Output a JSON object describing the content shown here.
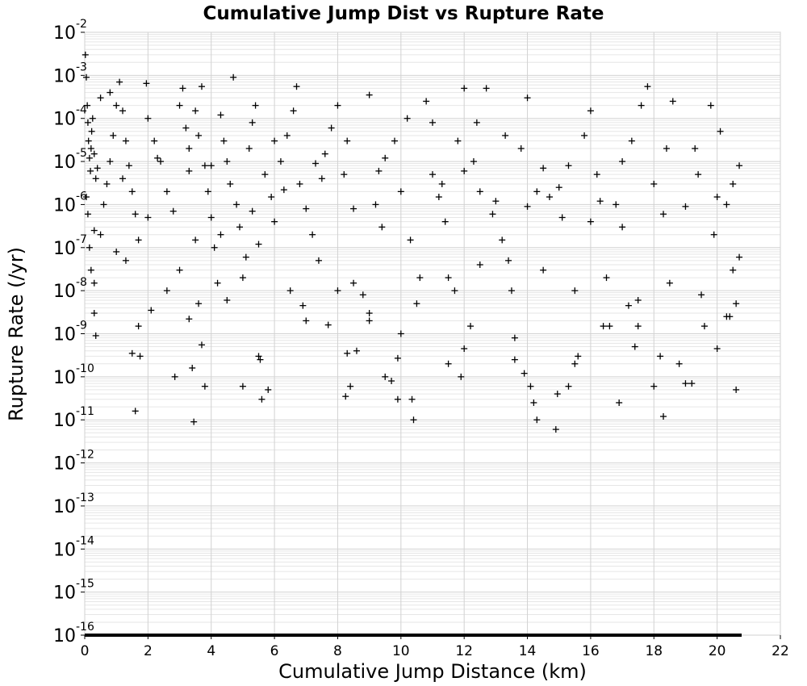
{
  "chart_data": {
    "type": "scatter",
    "title": "Cumulative Jump Dist vs Rupture Rate",
    "xlabel": "Cumulative Jump Distance (km)",
    "ylabel": "Rupture Rate (/yr)",
    "xlim": [
      0,
      22
    ],
    "ylim": [
      1e-16,
      0.01
    ],
    "y_scale": "log",
    "grid": true,
    "legend": "none",
    "marker": "plus",
    "marker_color": "#000000",
    "x_ticks": [
      0,
      2,
      4,
      6,
      8,
      10,
      12,
      14,
      16,
      18,
      20,
      22
    ],
    "y_tick_exponents": [
      -16,
      -15,
      -14,
      -13,
      -12,
      -11,
      -10,
      -9,
      -8,
      -7,
      -6,
      -5,
      -4,
      -3,
      -2
    ],
    "y_tick_base": "10",
    "points": [
      [
        0.02,
        0.003
      ],
      [
        0.05,
        0.0009
      ],
      [
        0.08,
        0.0002
      ],
      [
        0.1,
        8e-05
      ],
      [
        0.12,
        3e-05
      ],
      [
        0.15,
        1.2e-05
      ],
      [
        0.18,
        6e-06
      ],
      [
        0.2,
        2e-05
      ],
      [
        0.22,
        5e-05
      ],
      [
        0.25,
        0.0001
      ],
      [
        0.3,
        1.5e-05
      ],
      [
        0.35,
        4e-06
      ],
      [
        0.4,
        7e-06
      ],
      [
        0.05,
        1.5e-06
      ],
      [
        0.1,
        6e-07
      ],
      [
        0.15,
        1e-07
      ],
      [
        0.2,
        3e-08
      ],
      [
        0.3,
        1.5e-08
      ],
      [
        0.3,
        3e-09
      ],
      [
        0.35,
        9e-10
      ],
      [
        0.5,
        2e-07
      ],
      [
        0.6,
        1e-06
      ],
      [
        0.7,
        3e-06
      ],
      [
        0.8,
        1e-05
      ],
      [
        0.9,
        4e-05
      ],
      [
        1.0,
        0.0002
      ],
      [
        1.1,
        0.0007
      ],
      [
        1.2,
        0.00015
      ],
      [
        1.3,
        3e-05
      ],
      [
        1.4,
        8e-06
      ],
      [
        1.5,
        2e-06
      ],
      [
        1.6,
        6e-07
      ],
      [
        1.7,
        1.5e-07
      ],
      [
        1.3,
        5e-08
      ],
      [
        1.5,
        3.5e-10
      ],
      [
        1.6,
        1.6e-11
      ],
      [
        1.7,
        1.5e-09
      ],
      [
        1.75,
        3e-10
      ],
      [
        1.95,
        0.00065
      ],
      [
        2.0,
        0.0001
      ],
      [
        2.2,
        3e-05
      ],
      [
        2.4,
        1e-05
      ],
      [
        2.1,
        3.5e-09
      ],
      [
        2.6,
        2e-06
      ],
      [
        2.8,
        7e-07
      ],
      [
        2.85,
        1e-10
      ],
      [
        3.0,
        0.0002
      ],
      [
        3.1,
        0.0005
      ],
      [
        3.2,
        6e-05
      ],
      [
        3.3,
        2e-05
      ],
      [
        3.3,
        2.2e-09
      ],
      [
        3.4,
        1.6e-10
      ],
      [
        3.45,
        9e-12
      ],
      [
        3.5,
        0.00015
      ],
      [
        3.6,
        4e-05
      ],
      [
        3.6,
        5e-09
      ],
      [
        3.7,
        0.00055
      ],
      [
        3.7,
        5.5e-10
      ],
      [
        3.8,
        8e-06
      ],
      [
        3.8,
        6e-11
      ],
      [
        3.9,
        2e-06
      ],
      [
        4.0,
        5e-07
      ],
      [
        4.1,
        1e-07
      ],
      [
        4.2,
        1.5e-08
      ],
      [
        4.3,
        0.00012
      ],
      [
        4.4,
        3e-05
      ],
      [
        4.5,
        1e-05
      ],
      [
        4.6,
        3e-06
      ],
      [
        4.7,
        0.0009
      ],
      [
        4.8,
        1e-06
      ],
      [
        4.9,
        3e-07
      ],
      [
        5.0,
        6e-11
      ],
      [
        5.1,
        6e-08
      ],
      [
        5.2,
        2e-05
      ],
      [
        5.3,
        8e-05
      ],
      [
        5.4,
        0.0002
      ],
      [
        5.5,
        3e-10
      ],
      [
        5.55,
        2.5e-10
      ],
      [
        5.6,
        3e-11
      ],
      [
        5.7,
        5e-06
      ],
      [
        5.8,
        5e-11
      ],
      [
        5.9,
        1.5e-06
      ],
      [
        6.0,
        4e-07
      ],
      [
        6.2,
        1e-05
      ],
      [
        6.4,
        4e-05
      ],
      [
        6.6,
        0.00015
      ],
      [
        6.7,
        0.00055
      ],
      [
        6.8,
        3e-06
      ],
      [
        6.9,
        4.5e-09
      ],
      [
        7.0,
        8e-07
      ],
      [
        7.2,
        2e-07
      ],
      [
        7.4,
        5e-08
      ],
      [
        7.6,
        1.5e-05
      ],
      [
        7.7,
        1.6e-09
      ],
      [
        7.8,
        6e-05
      ],
      [
        8.0,
        0.0002
      ],
      [
        8.2,
        5e-06
      ],
      [
        8.25,
        3.5e-11
      ],
      [
        8.3,
        3.5e-10
      ],
      [
        8.4,
        6e-11
      ],
      [
        8.5,
        1.5e-08
      ],
      [
        8.6,
        4e-10
      ],
      [
        8.8,
        8e-09
      ],
      [
        9.0,
        0.00035
      ],
      [
        9.0,
        2e-09
      ],
      [
        9.2,
        1e-06
      ],
      [
        9.4,
        3e-07
      ],
      [
        9.5,
        1e-10
      ],
      [
        9.7,
        8e-11
      ],
      [
        9.8,
        3e-05
      ],
      [
        9.9,
        2.7e-10
      ],
      [
        9.9,
        3e-11
      ],
      [
        10.0,
        1e-09
      ],
      [
        10.2,
        0.0001
      ],
      [
        10.35,
        3e-11
      ],
      [
        10.4,
        1e-11
      ],
      [
        10.6,
        2e-08
      ],
      [
        10.8,
        0.00025
      ],
      [
        11.0,
        5e-06
      ],
      [
        11.2,
        1.5e-06
      ],
      [
        11.4,
        4e-07
      ],
      [
        11.5,
        2e-10
      ],
      [
        11.7,
        1e-08
      ],
      [
        11.8,
        3e-05
      ],
      [
        11.9,
        1e-10
      ],
      [
        12.0,
        4.5e-10
      ],
      [
        12.0,
        0.0005
      ],
      [
        12.2,
        1.5e-09
      ],
      [
        12.4,
        8e-05
      ],
      [
        12.5,
        2e-06
      ],
      [
        12.7,
        0.0005
      ],
      [
        12.9,
        6e-07
      ],
      [
        13.2,
        1.5e-07
      ],
      [
        13.4,
        5e-08
      ],
      [
        13.6,
        2.5e-10
      ],
      [
        13.6,
        8e-10
      ],
      [
        13.8,
        2e-05
      ],
      [
        13.9,
        1.2e-10
      ],
      [
        14.0,
        0.0003
      ],
      [
        14.1,
        6e-11
      ],
      [
        14.2,
        2.5e-11
      ],
      [
        14.3,
        1e-11
      ],
      [
        14.5,
        7e-06
      ],
      [
        14.7,
        1.5e-06
      ],
      [
        14.9,
        6e-12
      ],
      [
        14.95,
        4e-11
      ],
      [
        15.1,
        5e-07
      ],
      [
        15.3,
        6e-11
      ],
      [
        15.5,
        2e-10
      ],
      [
        15.6,
        3e-10
      ],
      [
        15.8,
        4e-05
      ],
      [
        16.0,
        0.00015
      ],
      [
        16.2,
        5e-06
      ],
      [
        16.4,
        1.5e-09
      ],
      [
        16.6,
        1.5e-09
      ],
      [
        16.8,
        1e-06
      ],
      [
        16.9,
        2.5e-11
      ],
      [
        17.0,
        3e-07
      ],
      [
        17.2,
        4.5e-09
      ],
      [
        17.4,
        5e-10
      ],
      [
        17.5,
        1.5e-09
      ],
      [
        17.6,
        0.0002
      ],
      [
        17.8,
        0.00055
      ],
      [
        18.0,
        6e-11
      ],
      [
        18.2,
        3e-10
      ],
      [
        18.3,
        1.2e-11
      ],
      [
        18.4,
        2e-05
      ],
      [
        18.6,
        0.00025
      ],
      [
        18.8,
        2e-10
      ],
      [
        19.0,
        7e-11
      ],
      [
        19.2,
        7e-11
      ],
      [
        19.4,
        5e-06
      ],
      [
        19.6,
        1.5e-09
      ],
      [
        19.8,
        0.0002
      ],
      [
        19.9,
        2e-07
      ],
      [
        20.0,
        4.5e-10
      ],
      [
        20.1,
        5e-05
      ],
      [
        20.3,
        2.5e-09
      ],
      [
        20.4,
        2.5e-09
      ],
      [
        20.5,
        3e-06
      ],
      [
        20.6,
        5e-11
      ],
      [
        20.6,
        5e-09
      ],
      [
        20.7,
        8e-06
      ],
      [
        20.7,
        6e-08
      ],
      [
        0.5,
        0.0003
      ],
      [
        0.8,
        0.0004
      ],
      [
        2.6,
        1e-08
      ],
      [
        3.0,
        3e-08
      ],
      [
        4.5,
        6e-09
      ],
      [
        5.0,
        2e-08
      ],
      [
        6.5,
        1e-08
      ],
      [
        7.0,
        2e-09
      ],
      [
        8.0,
        1e-08
      ],
      [
        9.0,
        3e-09
      ],
      [
        10.5,
        5e-09
      ],
      [
        11.5,
        2e-08
      ],
      [
        12.5,
        4e-08
      ],
      [
        13.5,
        1e-08
      ],
      [
        14.5,
        3e-08
      ],
      [
        15.5,
        1e-08
      ],
      [
        16.5,
        2e-08
      ],
      [
        17.5,
        6e-09
      ],
      [
        18.5,
        1.5e-08
      ],
      [
        19.5,
        8e-09
      ],
      [
        20.5,
        3e-08
      ],
      [
        1.0,
        8e-08
      ],
      [
        2.0,
        5e-07
      ],
      [
        3.5,
        1.5e-07
      ],
      [
        4.0,
        8e-06
      ],
      [
        5.5,
        1.2e-07
      ],
      [
        6.0,
        3e-05
      ],
      [
        7.5,
        4e-06
      ],
      [
        8.5,
        8e-07
      ],
      [
        9.5,
        1.2e-05
      ],
      [
        10.0,
        2e-06
      ],
      [
        11.0,
        8e-05
      ],
      [
        12.0,
        6e-06
      ],
      [
        13.0,
        1.2e-06
      ],
      [
        14.0,
        9e-07
      ],
      [
        15.0,
        2.5e-06
      ],
      [
        16.0,
        4e-07
      ],
      [
        17.0,
        1e-05
      ],
      [
        18.0,
        3e-06
      ],
      [
        19.0,
        9e-07
      ],
      [
        20.0,
        1.5e-06
      ],
      [
        0.3,
        2.5e-07
      ],
      [
        1.2,
        4e-06
      ],
      [
        2.3,
        1.2e-05
      ],
      [
        3.3,
        6e-06
      ],
      [
        4.3,
        2e-07
      ],
      [
        5.3,
        7e-07
      ],
      [
        6.3,
        2.2e-06
      ],
      [
        7.3,
        9e-06
      ],
      [
        8.3,
        3e-05
      ],
      [
        9.3,
        6e-06
      ],
      [
        10.3,
        1.5e-07
      ],
      [
        11.3,
        3e-06
      ],
      [
        12.3,
        1e-05
      ],
      [
        13.3,
        4e-05
      ],
      [
        14.3,
        2e-06
      ],
      [
        15.3,
        8e-06
      ],
      [
        16.3,
        1.2e-06
      ],
      [
        17.3,
        3e-05
      ],
      [
        18.3,
        6e-07
      ],
      [
        19.3,
        2e-05
      ],
      [
        20.3,
        1e-06
      ]
    ]
  }
}
